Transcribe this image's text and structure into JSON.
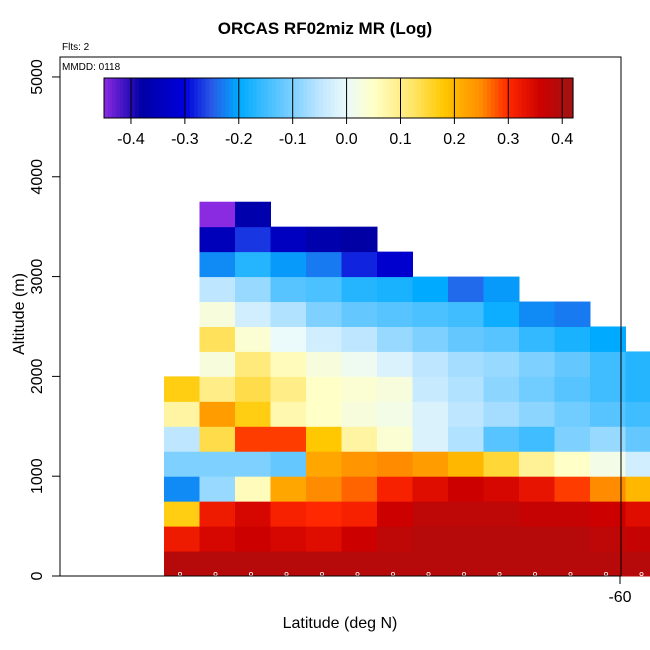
{
  "title": "ORCAS RF02miz MR (Log)",
  "flights_label": "Flts: 2",
  "date_label": "MMDD: 0118",
  "chart_data": {
    "type": "heatmap",
    "title": "ORCAS RF02miz MR (Log)",
    "xlabel": "Latitude (deg N)",
    "ylabel": "Altitude (m)",
    "x_tick_labels": [
      "-60"
    ],
    "y_ticks": [
      0,
      1000,
      2000,
      3000,
      4000,
      5000
    ],
    "y_tick_labels": [
      "0",
      "1000",
      "2000",
      "3000",
      "4000",
      "5000"
    ],
    "ylim": [
      0,
      5200
    ],
    "altitude_bin_size_m": 250,
    "colorbar": {
      "range": [
        -0.45,
        0.42
      ],
      "ticks": [
        -0.4,
        -0.3,
        -0.2,
        -0.1,
        0.0,
        0.1,
        0.2,
        0.3,
        0.4
      ],
      "tick_labels": [
        "-0.4",
        "-0.3",
        "-0.2",
        "-0.1",
        "0.0",
        "0.1",
        "0.2",
        "0.3",
        "0.4"
      ],
      "placement": "top inside plot"
    },
    "columns": [
      {
        "latitude": -68.0,
        "bins": [
          [
            0,
            0.39
          ],
          [
            1,
            0.32
          ],
          [
            2,
            0.17
          ],
          [
            3,
            -0.22
          ],
          [
            4,
            -0.1
          ],
          [
            5,
            -0.05
          ],
          [
            6,
            0.08
          ],
          [
            7,
            0.17
          ]
        ]
      },
      {
        "latitude": -67.5,
        "bins": [
          [
            0,
            0.39
          ],
          [
            1,
            0.35
          ],
          [
            2,
            0.32
          ],
          [
            3,
            -0.08
          ],
          [
            4,
            -0.1
          ],
          [
            5,
            0.14
          ],
          [
            6,
            0.23
          ],
          [
            7,
            0.1
          ],
          [
            8,
            0.03
          ],
          [
            9,
            0.13
          ],
          [
            10,
            0.03
          ],
          [
            11,
            -0.05
          ],
          [
            12,
            -0.22
          ],
          [
            13,
            -0.35
          ],
          [
            14,
            -0.45
          ]
        ]
      },
      {
        "latitude": -67.0,
        "bins": [
          [
            0,
            0.39
          ],
          [
            1,
            0.36
          ],
          [
            2,
            0.35
          ],
          [
            3,
            0.06
          ],
          [
            4,
            -0.1
          ],
          [
            5,
            0.29
          ],
          [
            6,
            0.17
          ],
          [
            7,
            0.14
          ],
          [
            8,
            0.11
          ],
          [
            9,
            0.04
          ],
          [
            10,
            -0.03
          ],
          [
            11,
            -0.08
          ],
          [
            12,
            -0.17
          ],
          [
            13,
            -0.27
          ],
          [
            14,
            -0.37
          ]
        ]
      },
      {
        "latitude": -66.5,
        "bins": [
          [
            0,
            0.39
          ],
          [
            1,
            0.35
          ],
          [
            2,
            0.31
          ],
          [
            3,
            0.22
          ],
          [
            4,
            -0.12
          ],
          [
            5,
            0.29
          ],
          [
            6,
            0.07
          ],
          [
            7,
            0.1
          ],
          [
            8,
            0.06
          ],
          [
            9,
            0.0
          ],
          [
            10,
            -0.06
          ],
          [
            11,
            -0.13
          ],
          [
            12,
            -0.21
          ],
          [
            13,
            -0.34
          ]
        ]
      },
      {
        "latitude": -66.0,
        "bins": [
          [
            0,
            0.39
          ],
          [
            1,
            0.34
          ],
          [
            2,
            0.3
          ],
          [
            3,
            0.25
          ],
          [
            4,
            0.22
          ],
          [
            5,
            0.18
          ],
          [
            6,
            0.05
          ],
          [
            7,
            0.05
          ],
          [
            8,
            0.03
          ],
          [
            9,
            -0.03
          ],
          [
            10,
            -0.1
          ],
          [
            11,
            -0.14
          ],
          [
            12,
            -0.23
          ],
          [
            13,
            -0.37
          ]
        ]
      },
      {
        "latitude": -65.5,
        "bins": [
          [
            0,
            0.39
          ],
          [
            1,
            0.36
          ],
          [
            2,
            0.31
          ],
          [
            3,
            0.27
          ],
          [
            4,
            0.24
          ],
          [
            5,
            0.08
          ],
          [
            6,
            0.03
          ],
          [
            7,
            0.04
          ],
          [
            8,
            0.01
          ],
          [
            9,
            -0.05
          ],
          [
            10,
            -0.12
          ],
          [
            11,
            -0.17
          ],
          [
            12,
            -0.28
          ],
          [
            13,
            -0.38
          ]
        ]
      },
      {
        "latitude": -65.0,
        "bins": [
          [
            0,
            0.39
          ],
          [
            1,
            0.38
          ],
          [
            2,
            0.36
          ],
          [
            3,
            0.31
          ],
          [
            4,
            0.25
          ],
          [
            5,
            0.04
          ],
          [
            6,
            0.02
          ],
          [
            7,
            0.03
          ],
          [
            8,
            -0.02
          ],
          [
            9,
            -0.08
          ],
          [
            10,
            -0.13
          ],
          [
            11,
            -0.18
          ],
          [
            12,
            -0.32
          ]
        ]
      },
      {
        "latitude": -64.5,
        "bins": [
          [
            0,
            0.39
          ],
          [
            1,
            0.39
          ],
          [
            2,
            0.38
          ],
          [
            3,
            0.34
          ],
          [
            4,
            0.23
          ],
          [
            5,
            -0.02
          ],
          [
            6,
            -0.02
          ],
          [
            7,
            -0.04
          ],
          [
            8,
            -0.05
          ],
          [
            9,
            -0.1
          ],
          [
            10,
            -0.14
          ],
          [
            11,
            -0.2
          ]
        ]
      },
      {
        "latitude": -64.0,
        "bins": [
          [
            0,
            0.39
          ],
          [
            1,
            0.39
          ],
          [
            2,
            0.38
          ],
          [
            3,
            0.36
          ],
          [
            4,
            0.2
          ],
          [
            5,
            -0.06
          ],
          [
            6,
            -0.05
          ],
          [
            7,
            -0.06
          ],
          [
            8,
            -0.07
          ],
          [
            9,
            -0.12
          ],
          [
            10,
            -0.15
          ],
          [
            11,
            -0.24
          ]
        ]
      },
      {
        "latitude": -63.5,
        "bins": [
          [
            0,
            0.39
          ],
          [
            1,
            0.39
          ],
          [
            2,
            0.38
          ],
          [
            3,
            0.35
          ],
          [
            4,
            0.15
          ],
          [
            5,
            -0.13
          ],
          [
            6,
            -0.07
          ],
          [
            7,
            -0.09
          ],
          [
            8,
            -0.08
          ],
          [
            9,
            -0.13
          ],
          [
            10,
            -0.19
          ],
          [
            11,
            -0.21
          ]
        ]
      },
      {
        "latitude": -63.0,
        "bins": [
          [
            0,
            0.39
          ],
          [
            1,
            0.39
          ],
          [
            2,
            0.37
          ],
          [
            3,
            0.33
          ],
          [
            4,
            0.09
          ],
          [
            5,
            -0.15
          ],
          [
            6,
            -0.09
          ],
          [
            7,
            -0.11
          ],
          [
            8,
            -0.1
          ],
          [
            9,
            -0.16
          ],
          [
            10,
            -0.22
          ]
        ]
      },
      {
        "latitude": -62.5,
        "bins": [
          [
            0,
            0.39
          ],
          [
            1,
            0.39
          ],
          [
            2,
            0.37
          ],
          [
            3,
            0.29
          ],
          [
            4,
            0.05
          ],
          [
            5,
            -0.1
          ],
          [
            6,
            -0.11
          ],
          [
            7,
            -0.13
          ],
          [
            8,
            -0.12
          ],
          [
            9,
            -0.18
          ],
          [
            10,
            -0.23
          ]
        ]
      },
      {
        "latitude": -62.0,
        "bins": [
          [
            0,
            0.39
          ],
          [
            1,
            0.38
          ],
          [
            2,
            0.36
          ],
          [
            3,
            0.25
          ],
          [
            4,
            0.02
          ],
          [
            5,
            -0.08
          ],
          [
            6,
            -0.13
          ],
          [
            7,
            -0.15
          ],
          [
            8,
            -0.15
          ],
          [
            9,
            -0.2
          ]
        ]
      },
      {
        "latitude": -61.5,
        "bins": [
          [
            0,
            0.39
          ],
          [
            1,
            0.37
          ],
          [
            2,
            0.34
          ],
          [
            3,
            0.2
          ],
          [
            4,
            -0.03
          ],
          [
            5,
            -0.12
          ],
          [
            6,
            -0.15
          ],
          [
            7,
            -0.17
          ],
          [
            8,
            -0.17
          ]
        ]
      },
      {
        "latitude": -61.0,
        "bins": [
          [
            0,
            0.39
          ],
          [
            1,
            0.36
          ],
          [
            2,
            0.34
          ],
          [
            3,
            0.18
          ],
          [
            4,
            -0.08
          ],
          [
            5,
            -0.17
          ],
          [
            6,
            -0.23
          ]
        ]
      }
    ],
    "grid": false
  }
}
